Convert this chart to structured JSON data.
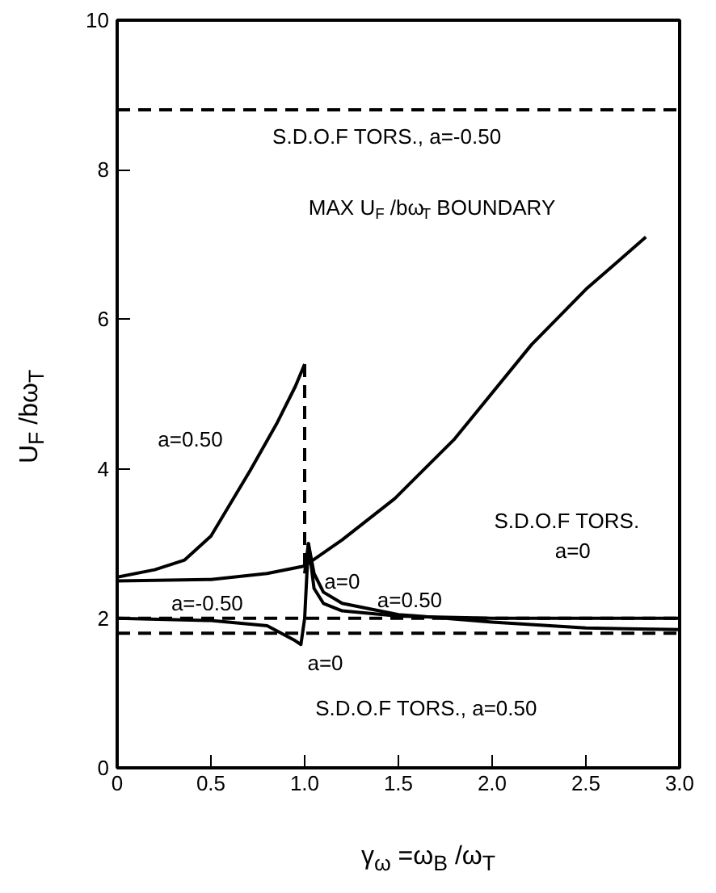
{
  "chart_data": {
    "type": "line",
    "xlabel": "γ$_{ω}$ =ω$_{B}$ /ω$_{T}$",
    "ylabel": "U$_{F}$ /bω$_{T}$",
    "xlim": [
      0,
      3
    ],
    "ylim": [
      0,
      10
    ],
    "xticks": [
      0,
      0.5,
      {
        "value": 1,
        "label": "1.0"
      },
      1.5,
      {
        "value": 2,
        "label": "2.0"
      },
      2.5,
      {
        "value": 3,
        "label": "3.0"
      }
    ],
    "yticks": [
      0,
      2,
      4,
      6,
      8,
      10
    ],
    "grid": false,
    "marker": "none",
    "series": [
      {
        "color": "#000000",
        "x": [
          0,
          0.2,
          0.36,
          0.5,
          0.71,
          0.85,
          0.95,
          1.0
        ],
        "values": [
          2.55,
          2.65,
          2.78,
          3.1,
          3.98,
          4.6,
          5.1,
          5.4
        ]
      },
      {
        "color": "#000000",
        "line_style": "dashed",
        "x": [
          1.0,
          1.0
        ],
        "values": [
          5.4,
          2.6
        ]
      },
      {
        "color": "#000000",
        "x": [
          1.0,
          1.02,
          1.05,
          1.1,
          1.2,
          1.5,
          2.0,
          2.5,
          3.0
        ],
        "values": [
          2.6,
          3.0,
          2.6,
          2.35,
          2.2,
          2.05,
          1.95,
          1.87,
          1.85
        ]
      },
      {
        "color": "#000000",
        "x": [
          0,
          0.5,
          0.8,
          1.0,
          1.2,
          1.48,
          1.8,
          2.21,
          2.5,
          2.82
        ],
        "values": [
          2.5,
          2.52,
          2.6,
          2.7,
          3.05,
          3.6,
          4.4,
          5.66,
          6.4,
          7.1
        ]
      },
      {
        "color": "#000000",
        "x": [
          0,
          0.5,
          0.8,
          0.95,
          0.98,
          1.0,
          1.02,
          1.05,
          1.1,
          1.2,
          1.5,
          2.0,
          3.0
        ],
        "values": [
          2.0,
          1.97,
          1.9,
          1.7,
          1.65,
          2.0,
          3.0,
          2.4,
          2.2,
          2.1,
          2.03,
          2.0,
          2.0
        ]
      }
    ],
    "ref_lines": [
      {
        "axis": "y",
        "value": 8.8,
        "line_style": "dashed",
        "color": "#000000"
      },
      {
        "axis": "y",
        "value": 2.0,
        "line_style": "dashed",
        "color": "#000000"
      },
      {
        "axis": "y",
        "value": 1.8,
        "line_style": "dashed",
        "color": "#000000"
      }
    ],
    "annotations": [
      "S.D.O.F TORS., a=-0.50",
      "MAX U$_{F}$ /bω$_{T}$ BOUNDARY",
      "a=0.50",
      "a=-0.50",
      "a=0",
      "a=0.50",
      "a=0",
      "S.D.O.F TORS.",
      "a=0",
      "S.D.O.F TORS., a=0.50"
    ]
  }
}
